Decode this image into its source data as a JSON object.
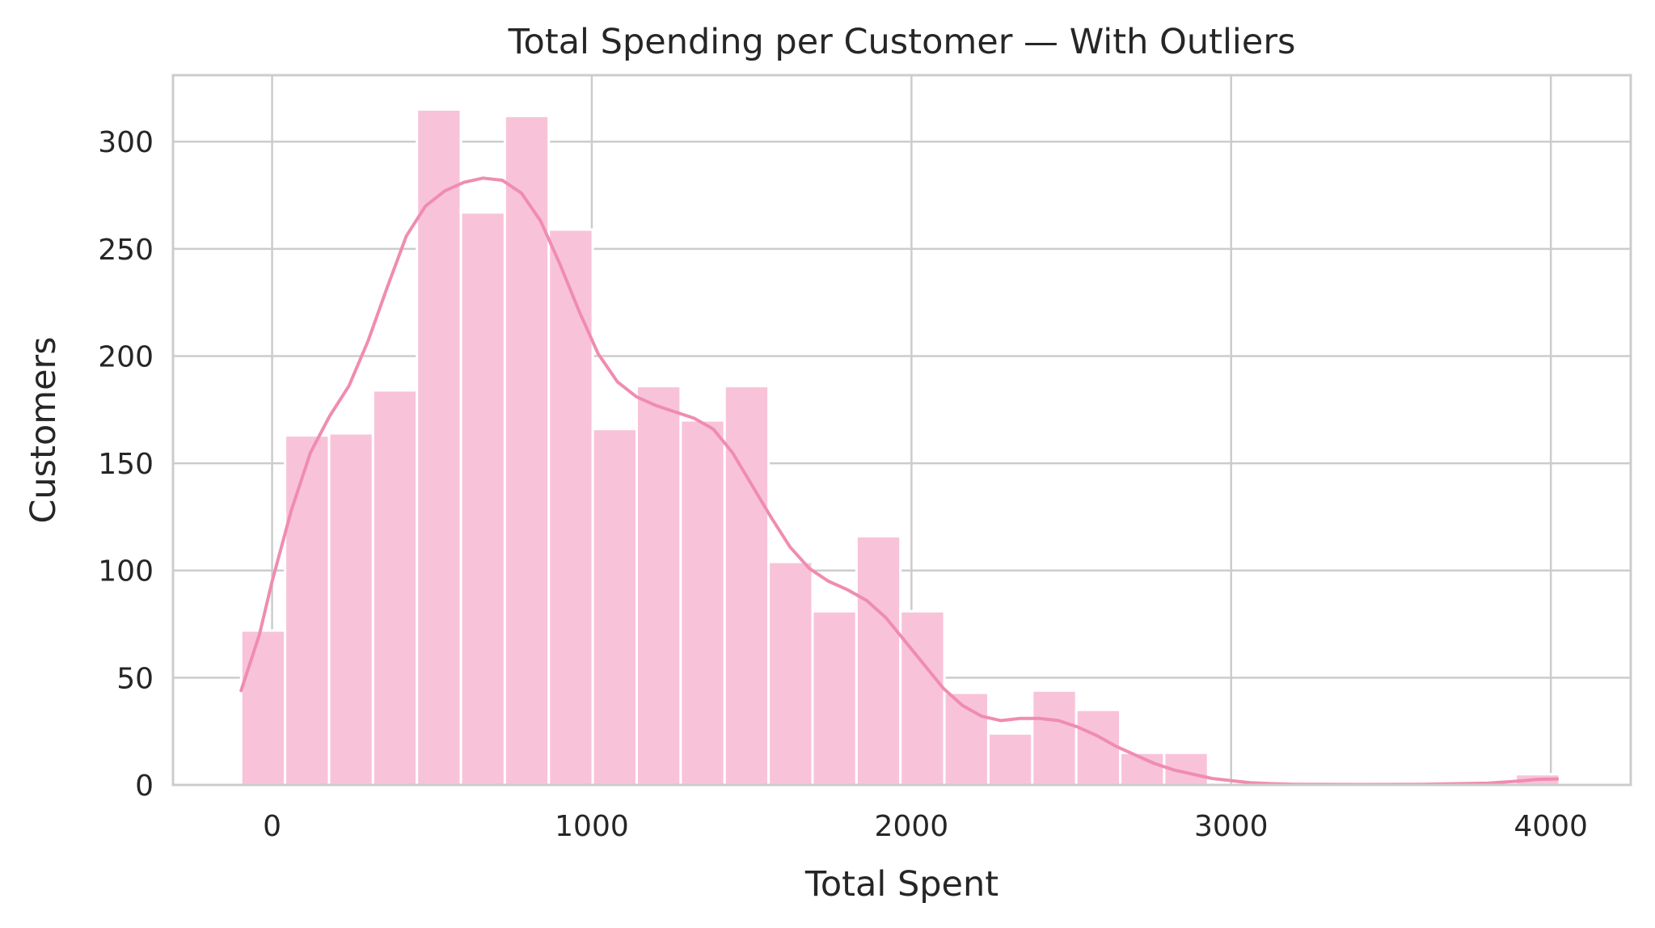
{
  "chart_data": {
    "type": "bar",
    "title": "Total Spending per Customer — With Outliers",
    "xlabel": "Total Spent",
    "ylabel": "Customers",
    "xlim": [
      -310,
      4250
    ],
    "ylim": [
      0,
      331
    ],
    "xticks": [
      0,
      1000,
      2000,
      3000,
      4000
    ],
    "yticks": [
      0,
      50,
      100,
      150,
      200,
      250,
      300
    ],
    "grid": true,
    "bar_color": "#f8c3d8",
    "kde_color": "#f08cb1",
    "bin_width": 137.5,
    "bins": [
      {
        "x0": -97,
        "count": 72
      },
      {
        "x0": 40.5,
        "count": 163
      },
      {
        "x0": 178,
        "count": 164
      },
      {
        "x0": 315.5,
        "count": 184
      },
      {
        "x0": 453,
        "count": 315
      },
      {
        "x0": 590.5,
        "count": 267
      },
      {
        "x0": 728,
        "count": 312
      },
      {
        "x0": 865.5,
        "count": 259
      },
      {
        "x0": 1003,
        "count": 166
      },
      {
        "x0": 1140.5,
        "count": 186
      },
      {
        "x0": 1278,
        "count": 170
      },
      {
        "x0": 1415.5,
        "count": 186
      },
      {
        "x0": 1553,
        "count": 104
      },
      {
        "x0": 1690.5,
        "count": 81
      },
      {
        "x0": 1828,
        "count": 116
      },
      {
        "x0": 1965.5,
        "count": 81
      },
      {
        "x0": 2103,
        "count": 43
      },
      {
        "x0": 2240.5,
        "count": 24
      },
      {
        "x0": 2378,
        "count": 44
      },
      {
        "x0": 2515.5,
        "count": 35
      },
      {
        "x0": 2653,
        "count": 15
      },
      {
        "x0": 2790.5,
        "count": 15
      },
      {
        "x0": 3890,
        "count": 5
      }
    ],
    "kde": {
      "x": [
        -97,
        -40,
        0,
        60,
        120,
        180,
        240,
        300,
        360,
        420,
        480,
        540,
        600,
        660,
        720,
        780,
        840,
        900,
        960,
        1020,
        1080,
        1140,
        1200,
        1260,
        1320,
        1380,
        1440,
        1500,
        1560,
        1620,
        1680,
        1740,
        1800,
        1860,
        1920,
        1980,
        2040,
        2100,
        2160,
        2220,
        2280,
        2340,
        2400,
        2460,
        2520,
        2580,
        2640,
        2700,
        2760,
        2820,
        2880,
        2940,
        3000,
        3060,
        3120,
        3200,
        3400,
        3600,
        3800,
        3900,
        3960,
        4020
      ],
      "y": [
        44,
        70,
        95,
        128,
        155,
        172,
        186,
        207,
        232,
        256,
        270,
        277,
        281,
        283,
        282,
        276,
        263,
        243,
        221,
        201,
        188,
        181,
        177,
        174,
        171,
        166,
        155,
        140,
        125,
        111,
        101,
        95,
        91,
        86,
        78,
        67,
        56,
        45,
        37,
        32,
        30,
        31,
        31,
        30,
        27,
        23,
        18,
        14,
        10,
        7,
        5,
        3,
        2,
        1,
        0.6,
        0.3,
        0.2,
        0.3,
        0.8,
        1.8,
        2.6,
        2.8
      ]
    }
  }
}
